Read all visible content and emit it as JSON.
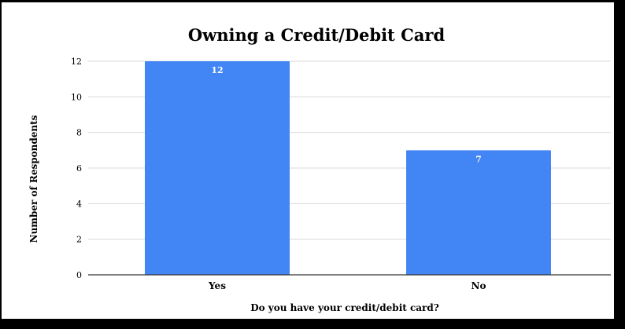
{
  "chart_data": {
    "type": "bar",
    "title": "Owning a Credit/Debit Card",
    "xlabel": "Do you have your credit/debit card?",
    "ylabel": "Number of Respondents",
    "categories": [
      "Yes",
      "No"
    ],
    "values": [
      12,
      7
    ],
    "data_labels": [
      "12",
      "7"
    ],
    "yticks": [
      "0",
      "2",
      "4",
      "6",
      "8",
      "10",
      "12"
    ],
    "ylim": [
      0,
      12
    ],
    "grid": true,
    "bar_color": "#4285f4",
    "legend": "none"
  }
}
